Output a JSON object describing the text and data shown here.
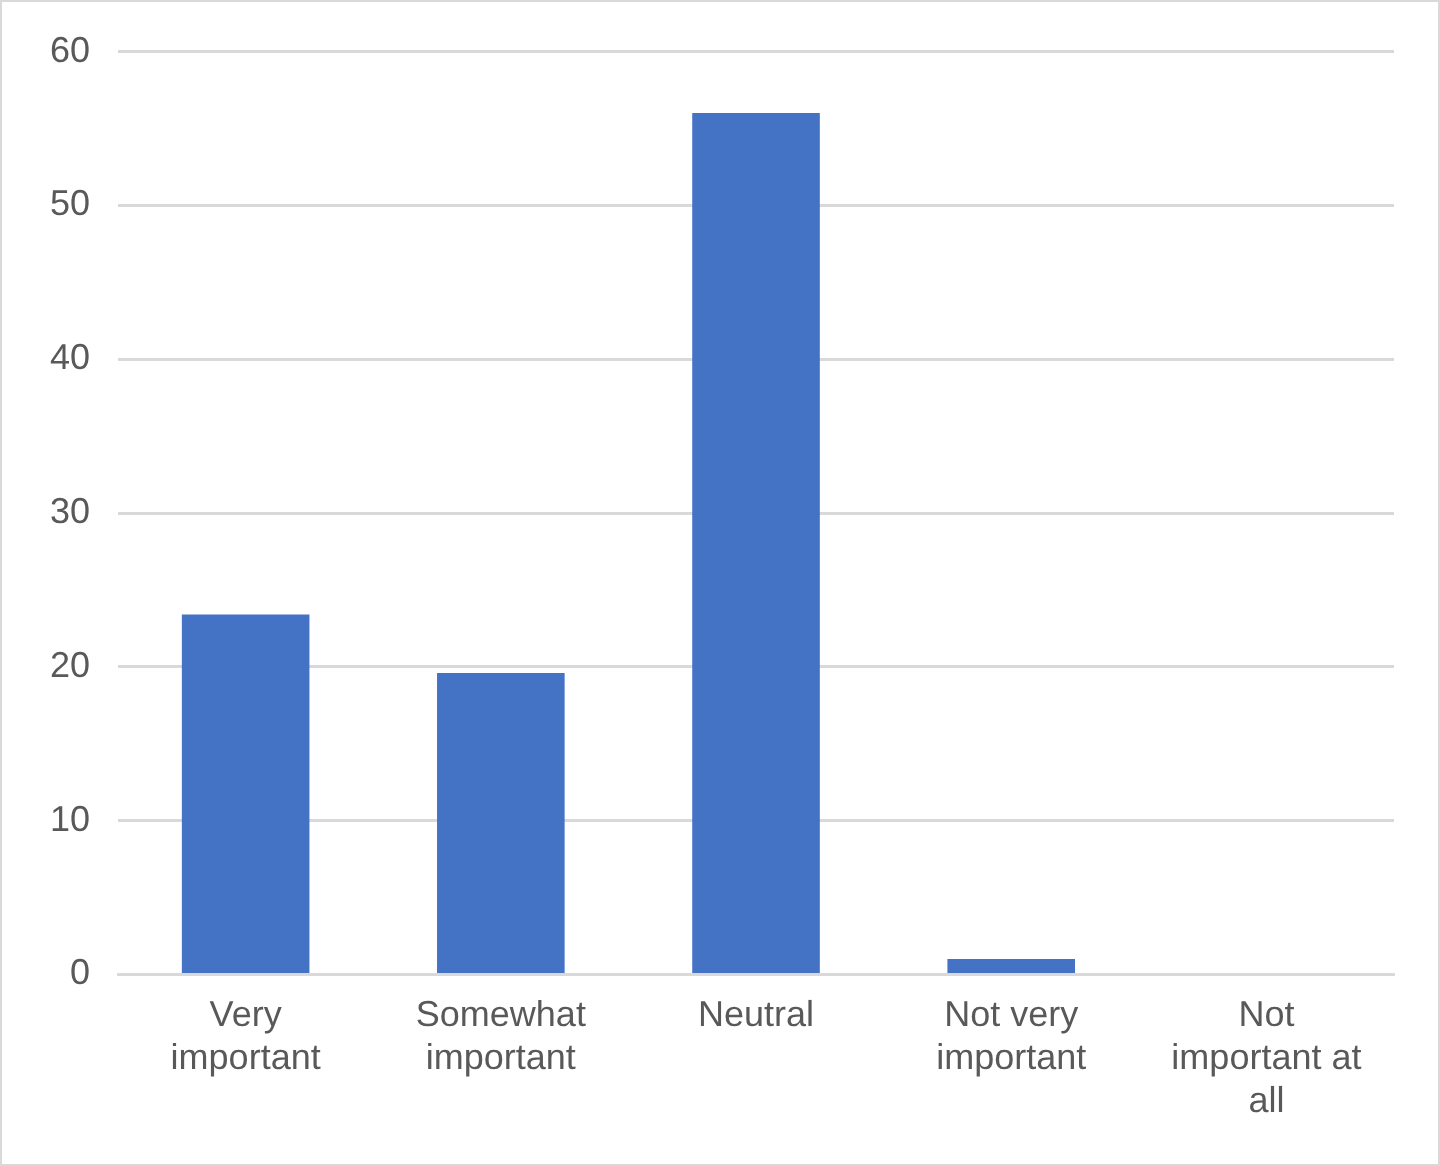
{
  "chart_data": {
    "type": "bar",
    "categories": [
      "Very important",
      "Somewhat important",
      "Neutral",
      "Not very important",
      "Not important at all"
    ],
    "values": [
      23.4,
      19.6,
      56,
      1,
      0
    ],
    "color": "#4472c4",
    "ylim": [
      0,
      60
    ],
    "yticks": [
      0,
      10,
      20,
      30,
      40,
      50,
      60
    ],
    "grid": "y",
    "legend": false
  }
}
